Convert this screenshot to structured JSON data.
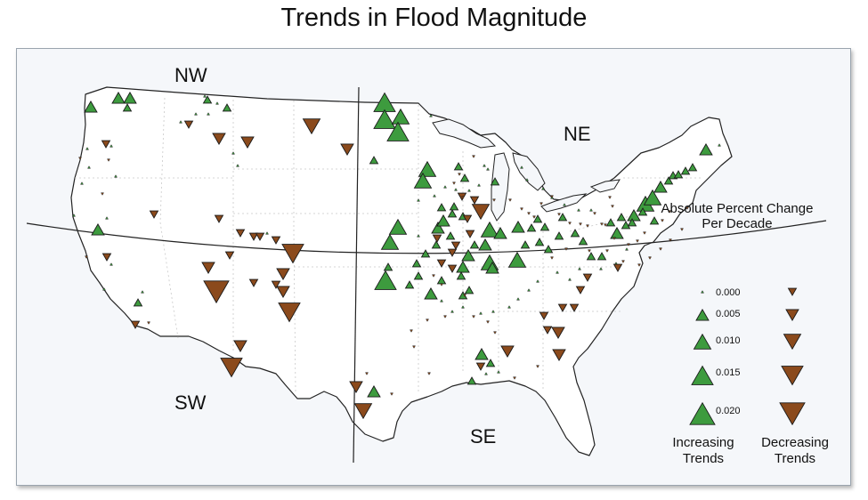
{
  "title": "Trends in Flood Magnitude",
  "regions": {
    "nw": "NW",
    "ne": "NE",
    "sw": "SW",
    "se": "SE"
  },
  "legend": {
    "title_line1": "Absolute Percent Change",
    "title_line2": "Per Decade",
    "values": [
      "0.000",
      "0.005",
      "0.010",
      "0.015",
      "0.020"
    ],
    "increasing_line1": "Increasing",
    "increasing_line2": "Trends",
    "decreasing_line1": "Decreasing",
    "decreasing_line2": "Trends"
  },
  "colors": {
    "increasing": "#3d9b3e",
    "decreasing": "#8b4a1c",
    "land": "#ffffff",
    "background": "#f5f7fa"
  },
  "stations": {
    "increasing": [
      [
        102,
        120,
        2
      ],
      [
        133,
        110,
        2
      ],
      [
        146,
        110,
        2
      ],
      [
        143,
        121,
        1
      ],
      [
        233,
        112,
        1
      ],
      [
        255,
        121,
        1
      ],
      [
        432,
        115,
        4
      ],
      [
        432,
        134,
        4
      ],
      [
        450,
        131,
        3
      ],
      [
        447,
        148,
        4
      ],
      [
        484,
        130,
        0
      ],
      [
        420,
        180,
        1
      ],
      [
        480,
        190,
        3
      ],
      [
        475,
        203,
        3
      ],
      [
        515,
        187,
        1
      ],
      [
        522,
        200,
        1
      ],
      [
        548,
        190,
        0
      ],
      [
        556,
        204,
        1
      ],
      [
        550,
        258,
        3
      ],
      [
        562,
        262,
        2
      ],
      [
        545,
        275,
        2
      ],
      [
        533,
        275,
        1
      ],
      [
        526,
        287,
        2
      ],
      [
        581,
        292,
        3
      ],
      [
        550,
        295,
        3
      ],
      [
        553,
        301,
        2
      ],
      [
        520,
        300,
        2
      ],
      [
        518,
        310,
        1
      ],
      [
        527,
        326,
        1
      ],
      [
        520,
        332,
        1
      ],
      [
        447,
        255,
        3
      ],
      [
        438,
        272,
        3
      ],
      [
        436,
        300,
        1
      ],
      [
        433,
        315,
        4
      ],
      [
        468,
        296,
        1
      ],
      [
        484,
        330,
        2
      ],
      [
        492,
        256,
        2
      ],
      [
        498,
        248,
        2
      ],
      [
        508,
        240,
        1
      ],
      [
        496,
        233,
        1
      ],
      [
        510,
        232,
        1
      ],
      [
        520,
        243,
        1
      ],
      [
        506,
        265,
        1
      ],
      [
        490,
        275,
        1
      ],
      [
        478,
        285,
        1
      ],
      [
        470,
        310,
        1
      ],
      [
        460,
        320,
        1
      ],
      [
        496,
        315,
        1
      ],
      [
        582,
        255,
        2
      ],
      [
        597,
        256,
        1
      ],
      [
        604,
        246,
        1
      ],
      [
        612,
        255,
        1
      ],
      [
        632,
        244,
        1
      ],
      [
        646,
        262,
        1
      ],
      [
        655,
        271,
        1
      ],
      [
        664,
        288,
        1
      ],
      [
        676,
        288,
        1
      ],
      [
        693,
        262,
        2
      ],
      [
        703,
        253,
        1
      ],
      [
        712,
        242,
        2
      ],
      [
        725,
        229,
        3
      ],
      [
        733,
        222,
        3
      ],
      [
        742,
        210,
        2
      ],
      [
        751,
        203,
        1
      ],
      [
        756,
        197,
        1
      ],
      [
        762,
        196,
        1
      ],
      [
        770,
        192,
        1
      ],
      [
        778,
        188,
        1
      ],
      [
        793,
        168,
        2
      ],
      [
        808,
        163,
        0
      ],
      [
        735,
        248,
        1
      ],
      [
        722,
        238,
        1
      ],
      [
        710,
        250,
        1
      ],
      [
        698,
        244,
        1
      ],
      [
        686,
        250,
        1
      ],
      [
        628,
        265,
        1
      ],
      [
        616,
        280,
        1
      ],
      [
        606,
        272,
        1
      ],
      [
        590,
        275,
        1
      ],
      [
        541,
        398,
        2
      ],
      [
        551,
        408,
        1
      ],
      [
        546,
        420,
        0
      ],
      [
        530,
        428,
        1
      ],
      [
        560,
        418,
        0
      ],
      [
        420,
        440,
        2
      ],
      [
        110,
        258,
        2
      ],
      [
        98,
        167,
        0
      ],
      [
        100,
        188,
        0
      ],
      [
        92,
        206,
        0
      ],
      [
        83,
        242,
        0
      ],
      [
        120,
        245,
        0
      ],
      [
        117,
        325,
        0
      ],
      [
        130,
        198,
        0
      ],
      [
        125,
        164,
        0
      ],
      [
        155,
        340,
        1
      ],
      [
        160,
        328,
        0
      ],
      [
        125,
        297,
        0
      ],
      [
        267,
        186,
        0
      ],
      [
        262,
        172,
        0
      ],
      [
        230,
        108,
        0
      ],
      [
        212,
        137,
        0
      ],
      [
        220,
        128,
        0
      ],
      [
        234,
        128,
        0
      ],
      [
        244,
        116,
        0
      ],
      [
        203,
        137,
        0
      ],
      [
        300,
        262,
        0
      ],
      [
        470,
        265,
        0
      ],
      [
        470,
        225,
        0
      ],
      [
        488,
        220,
        0
      ],
      [
        500,
        210,
        0
      ],
      [
        512,
        213,
        0
      ],
      [
        527,
        214,
        0
      ],
      [
        538,
        208,
        0
      ],
      [
        544,
        186,
        0
      ],
      [
        586,
        188,
        0
      ],
      [
        592,
        202,
        0
      ],
      [
        610,
        212,
        0
      ],
      [
        620,
        222,
        0
      ],
      [
        634,
        230,
        0
      ],
      [
        650,
        236,
        0
      ],
      [
        664,
        236,
        0
      ],
      [
        540,
        352,
        0
      ],
      [
        554,
        350,
        0
      ],
      [
        572,
        345,
        0
      ],
      [
        582,
        336,
        0
      ],
      [
        594,
        326,
        0
      ],
      [
        604,
        316,
        0
      ],
      [
        626,
        306,
        0
      ],
      [
        640,
        314,
        0
      ],
      [
        651,
        302,
        0
      ],
      [
        675,
        302,
        0
      ],
      [
        692,
        296,
        0
      ],
      [
        704,
        280,
        0
      ],
      [
        520,
        345,
        0
      ],
      [
        508,
        350,
        0
      ],
      [
        496,
        338,
        0
      ]
    ],
    "decreasing": [
      [
        350,
        142,
        3
      ],
      [
        390,
        168,
        2
      ],
      [
        278,
        160,
        2
      ],
      [
        246,
        156,
        2
      ],
      [
        212,
        140,
        1
      ],
      [
        119,
        162,
        1
      ],
      [
        122,
        180,
        0
      ],
      [
        90,
        178,
        0
      ],
      [
        115,
        218,
        0
      ],
      [
        173,
        241,
        1
      ],
      [
        246,
        246,
        1
      ],
      [
        270,
        262,
        1
      ],
      [
        285,
        266,
        1
      ],
      [
        292,
        266,
        1
      ],
      [
        310,
        270,
        1
      ],
      [
        329,
        285,
        4
      ],
      [
        234,
        301,
        2
      ],
      [
        243,
        328,
        5
      ],
      [
        318,
        308,
        2
      ],
      [
        318,
        328,
        2
      ],
      [
        325,
        351,
        4
      ],
      [
        285,
        318,
        1
      ],
      [
        310,
        320,
        1
      ],
      [
        258,
        287,
        1
      ],
      [
        120,
        289,
        1
      ],
      [
        97,
        289,
        0
      ],
      [
        152,
        365,
        1
      ],
      [
        167,
        363,
        0
      ],
      [
        270,
        389,
        2
      ],
      [
        260,
        413,
        4
      ],
      [
        540,
        238,
        3
      ],
      [
        533,
        225,
        1
      ],
      [
        519,
        221,
        1
      ],
      [
        525,
        246,
        1
      ],
      [
        528,
        263,
        1
      ],
      [
        512,
        276,
        1
      ],
      [
        491,
        268,
        1
      ],
      [
        508,
        284,
        1
      ],
      [
        508,
        302,
        1
      ],
      [
        496,
        296,
        1
      ],
      [
        496,
        320,
        0
      ],
      [
        487,
        310,
        0
      ],
      [
        522,
        332,
        0
      ],
      [
        520,
        222,
        0
      ],
      [
        510,
        206,
        0
      ],
      [
        516,
        196,
        0
      ],
      [
        532,
        176,
        0
      ],
      [
        555,
        225,
        0
      ],
      [
        573,
        225,
        0
      ],
      [
        586,
        235,
        0
      ],
      [
        594,
        240,
        0
      ],
      [
        600,
        244,
        0
      ],
      [
        608,
        229,
        0
      ],
      [
        620,
        221,
        0
      ],
      [
        628,
        241,
        0
      ],
      [
        640,
        251,
        0
      ],
      [
        652,
        252,
        0
      ],
      [
        660,
        254,
        0
      ],
      [
        668,
        240,
        0
      ],
      [
        676,
        252,
        0
      ],
      [
        688,
        232,
        0
      ],
      [
        685,
        222,
        0
      ],
      [
        680,
        253,
        0
      ],
      [
        662,
        282,
        0
      ],
      [
        682,
        282,
        0
      ],
      [
        690,
        268,
        0
      ],
      [
        706,
        275,
        0
      ],
      [
        716,
        271,
        0
      ],
      [
        724,
        262,
        0
      ],
      [
        744,
        248,
        0
      ],
      [
        752,
        238,
        0
      ],
      [
        772,
        234,
        0
      ],
      [
        694,
        301,
        1
      ],
      [
        660,
        312,
        1
      ],
      [
        652,
        326,
        1
      ],
      [
        645,
        346,
        1
      ],
      [
        632,
        346,
        1
      ],
      [
        611,
        355,
        1
      ],
      [
        615,
        371,
        1
      ],
      [
        627,
        374,
        2
      ],
      [
        628,
        399,
        2
      ],
      [
        570,
        395,
        2
      ],
      [
        540,
        412,
        1
      ],
      [
        604,
        412,
        0
      ],
      [
        578,
        425,
        0
      ],
      [
        400,
        435,
        2
      ],
      [
        408,
        462,
        3
      ],
      [
        440,
        443,
        0
      ],
      [
        412,
        420,
        0
      ],
      [
        482,
        420,
        0
      ],
      [
        465,
        390,
        0
      ],
      [
        462,
        372,
        0
      ],
      [
        480,
        360,
        0
      ],
      [
        500,
        356,
        0
      ],
      [
        532,
        356,
        0
      ],
      [
        548,
        362,
        0
      ],
      [
        556,
        374,
        0
      ],
      [
        620,
        290,
        0
      ],
      [
        636,
        280,
        0
      ],
      [
        700,
        294,
        0
      ],
      [
        718,
        298,
        0
      ],
      [
        730,
        290,
        0
      ],
      [
        742,
        280,
        0
      ],
      [
        753,
        270,
        0
      ],
      [
        766,
        258,
        0
      ]
    ]
  }
}
